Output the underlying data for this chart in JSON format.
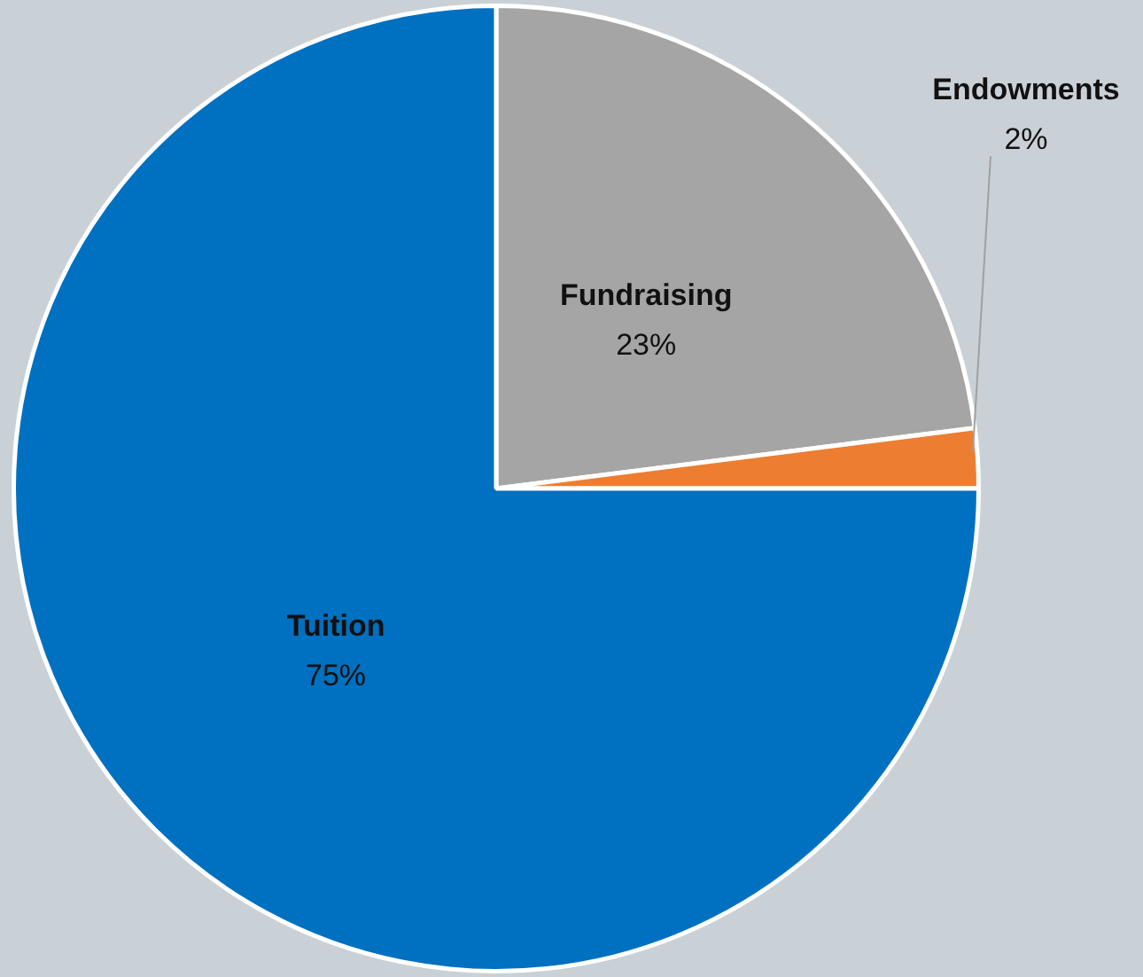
{
  "chart_data": {
    "type": "pie",
    "categories": [
      "Fundraising",
      "Endowments",
      "Tuition"
    ],
    "values": [
      23,
      2,
      75
    ],
    "colors": [
      "#a5a5a5",
      "#ed7d31",
      "#0070c0"
    ],
    "value_labels": [
      "23%",
      "2%",
      "75%"
    ],
    "legend": false
  }
}
